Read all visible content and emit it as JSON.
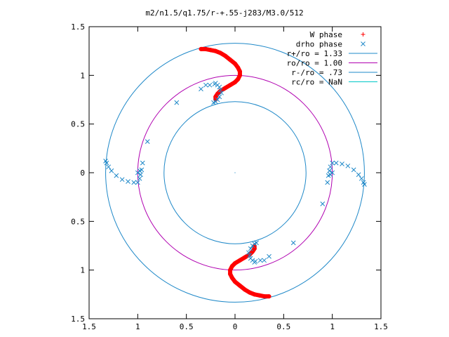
{
  "chart_data": {
    "type": "scatter",
    "title": "m2/n1.5/q1.75/r-+.55-j283/M3.0/512",
    "xlabel": "",
    "ylabel": "",
    "xlim": [
      -1.5,
      1.5
    ],
    "ylim": [
      -1.5,
      1.5
    ],
    "x_tick_labels": [
      "1.5",
      "1",
      "0.5",
      "0",
      "0.5",
      "1",
      "1.5"
    ],
    "x_tick_values": [
      -1.5,
      -1,
      -0.5,
      0,
      0.5,
      1,
      1.5
    ],
    "y_tick_labels": [
      "1.5",
      "1",
      "0.5",
      "0",
      "0.5",
      "1",
      "1.5"
    ],
    "y_tick_values": [
      1.5,
      1,
      0.5,
      0,
      -0.5,
      -1,
      -1.5
    ],
    "grid": false,
    "legend_position": "top-right",
    "circles": [
      {
        "name": "r+/ro = 1.33",
        "radius": 1.33,
        "color": "#1e88c8"
      },
      {
        "name": "ro/ro = 1.00",
        "radius": 1.0,
        "color": "#b000b0"
      },
      {
        "name": "r-/ro = .73",
        "radius": 0.73,
        "color": "#1e88c8"
      },
      {
        "name": "rc/ro = NaN",
        "radius": null,
        "color": "#00c8c8"
      }
    ],
    "series": [
      {
        "name": "W phase",
        "marker": "plus",
        "color": "#ff0000",
        "x": [
          -0.35,
          -0.3,
          -0.25,
          -0.2,
          -0.15,
          -0.1,
          -0.05,
          0.0,
          0.03,
          0.05,
          0.05,
          0.03,
          0.0,
          -0.05,
          -0.1,
          -0.15,
          -0.18,
          -0.2,
          -0.2,
          0.35,
          0.3,
          0.25,
          0.2,
          0.15,
          0.1,
          0.05,
          0.0,
          -0.03,
          -0.05,
          -0.05,
          -0.03,
          0.0,
          0.05,
          0.1,
          0.15,
          0.18,
          0.2,
          0.2
        ],
        "y": [
          1.27,
          1.27,
          1.26,
          1.25,
          1.23,
          1.2,
          1.16,
          1.12,
          1.08,
          1.04,
          1.0,
          0.96,
          0.93,
          0.9,
          0.87,
          0.84,
          0.81,
          0.78,
          0.75,
          -1.27,
          -1.27,
          -1.26,
          -1.25,
          -1.23,
          -1.2,
          -1.16,
          -1.12,
          -1.08,
          -1.04,
          -1.0,
          -0.96,
          -0.93,
          -0.9,
          -0.87,
          -0.84,
          -0.81,
          -0.78,
          -0.75
        ]
      },
      {
        "name": "drho phase",
        "marker": "cross",
        "color": "#1e88c8",
        "x": [
          -0.2,
          -0.18,
          -0.16,
          -0.15,
          -0.14,
          -0.16,
          -0.18,
          -0.2,
          -0.22,
          -0.21,
          -0.26,
          -0.3,
          -0.35,
          -0.6,
          -1.33,
          -1.32,
          -1.3,
          -1.27,
          -1.22,
          -1.16,
          -1.1,
          -1.04,
          -1.0,
          -0.98,
          -0.97,
          -0.98,
          -1.0,
          -0.96,
          -0.95,
          -0.9,
          0.2,
          0.18,
          0.16,
          0.15,
          0.14,
          0.16,
          0.18,
          0.2,
          0.22,
          0.21,
          0.26,
          0.3,
          0.35,
          0.6,
          1.33,
          1.32,
          1.3,
          1.27,
          1.22,
          1.16,
          1.1,
          1.04,
          1.0,
          0.98,
          0.97,
          0.98,
          1.0,
          0.96,
          0.95,
          0.9
        ],
        "y": [
          0.92,
          0.9,
          0.88,
          0.85,
          0.82,
          0.78,
          0.75,
          0.73,
          0.72,
          0.91,
          0.9,
          0.9,
          0.86,
          0.72,
          0.12,
          0.1,
          0.06,
          0.02,
          -0.03,
          -0.07,
          -0.09,
          -0.1,
          -0.1,
          -0.06,
          -0.02,
          0.02,
          0.0,
          0.03,
          0.1,
          0.32,
          -0.92,
          -0.9,
          -0.88,
          -0.85,
          -0.82,
          -0.78,
          -0.75,
          -0.73,
          -0.72,
          -0.91,
          -0.9,
          -0.9,
          -0.86,
          -0.72,
          -0.12,
          -0.1,
          -0.06,
          -0.02,
          0.03,
          0.07,
          0.09,
          0.1,
          0.1,
          0.06,
          0.02,
          -0.02,
          0.0,
          -0.03,
          -0.1,
          -0.32
        ]
      }
    ]
  }
}
